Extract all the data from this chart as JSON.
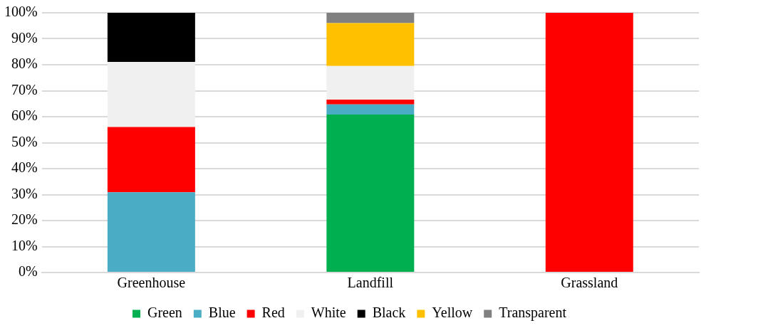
{
  "chart_data": {
    "type": "bar",
    "stacked": true,
    "categories": [
      "Greenhouse",
      "Landfill",
      "Grassland"
    ],
    "series": [
      {
        "name": "Green",
        "color": "#00b050",
        "values": [
          0,
          60.8,
          0
        ]
      },
      {
        "name": "Blue",
        "color": "#4bacc6",
        "values": [
          30.9,
          3.9,
          0
        ]
      },
      {
        "name": "Red",
        "color": "#ff0000",
        "values": [
          25.1,
          1.9,
          100
        ]
      },
      {
        "name": "White",
        "color": "#f0f0f0",
        "values": [
          25.1,
          12.9,
          0
        ]
      },
      {
        "name": "Black",
        "color": "#000000",
        "values": [
          18.9,
          0,
          0
        ]
      },
      {
        "name": "Yellow",
        "color": "#ffc000",
        "values": [
          0,
          16.5,
          0
        ]
      },
      {
        "name": "Transparent",
        "color": "#808080",
        "values": [
          0,
          4,
          0
        ]
      }
    ],
    "ylim": [
      0,
      100
    ],
    "yticks": [
      {
        "value": 0,
        "label": "0%"
      },
      {
        "value": 10,
        "label": "10%"
      },
      {
        "value": 20,
        "label": "20%"
      },
      {
        "value": 30,
        "label": "30%"
      },
      {
        "value": 40,
        "label": "40%"
      },
      {
        "value": 50,
        "label": "50%"
      },
      {
        "value": 60,
        "label": "60%"
      },
      {
        "value": 70,
        "label": "70%"
      },
      {
        "value": 80,
        "label": "80%"
      },
      {
        "value": 90,
        "label": "90%"
      },
      {
        "value": 100,
        "label": "100%"
      }
    ],
    "grid": "y",
    "legend": "bottom"
  }
}
